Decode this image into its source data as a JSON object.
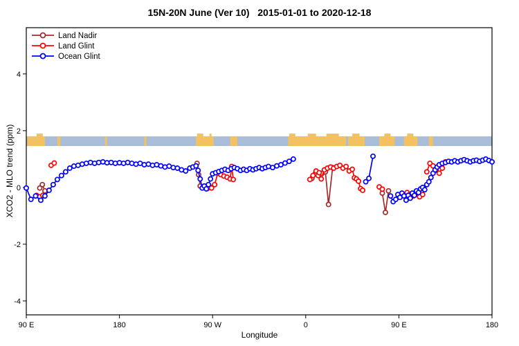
{
  "title": "15N-20N June (Ver 10)   2015-01-01 to 2020-12-18",
  "chart_data": {
    "type": "scatter",
    "title": "15N-20N June (Ver 10)   2015-01-01 to 2020-12-18",
    "xlabel": "Longitude",
    "ylabel": "XCO2 - MLO trend (ppm)",
    "x_domain": [
      90,
      540
    ],
    "ylim": [
      -4.49,
      5.63
    ],
    "grid": false,
    "x_ticks": [
      {
        "value": 90,
        "label": "90 E"
      },
      {
        "value": 180,
        "label": "180"
      },
      {
        "value": 270,
        "label": "90 W"
      },
      {
        "value": 360,
        "label": "0"
      },
      {
        "value": 450,
        "label": "90 E"
      },
      {
        "value": 540,
        "label": "180"
      }
    ],
    "y_ticks": [
      {
        "value": -4,
        "label": "-4"
      },
      {
        "value": -2,
        "label": "-2"
      },
      {
        "value": 0,
        "label": "0"
      },
      {
        "value": 2,
        "label": "2"
      },
      {
        "value": 4,
        "label": "4"
      }
    ],
    "legend": {
      "position": "top-left",
      "entries": [
        {
          "label": "Land Nadir",
          "color": "#A52A2A"
        },
        {
          "label": "Land Glint",
          "color": "#FF0000"
        },
        {
          "label": "Ocean Glint",
          "color": "#0000FF"
        }
      ]
    },
    "map_strip": {
      "y_range": [
        1.46,
        1.8
      ],
      "ocean_color": "#A9BDD8",
      "land_color": "#F4C162",
      "land_segments": [
        [
          91,
          108
        ],
        [
          120,
          123
        ],
        [
          166,
          168
        ],
        [
          204,
          206
        ],
        [
          254,
          271
        ],
        [
          287,
          294
        ],
        [
          343,
          399
        ],
        [
          401,
          417
        ],
        [
          431,
          446
        ],
        [
          455,
          468
        ],
        [
          479,
          483
        ]
      ],
      "land_flecks": [
        [
          100,
          106
        ],
        [
          255,
          261
        ],
        [
          267,
          269
        ],
        [
          344,
          350
        ],
        [
          362,
          370
        ],
        [
          380,
          392
        ],
        [
          405,
          412
        ],
        [
          436,
          442
        ],
        [
          458,
          464
        ]
      ]
    },
    "series": [
      {
        "name": "Land Nadir",
        "color": "#A52A2A",
        "segments": [
          [
            [
              103,
              -0.02
            ],
            [
              105.5,
              0.1
            ],
            [
              108,
              -0.12
            ]
          ],
          [
            [
              255,
              0.85
            ],
            [
              256.5,
              0.45
            ],
            [
              258,
              0.05
            ]
          ],
          [
            [
              366,
              0.32
            ],
            [
              369,
              0.48
            ],
            [
              372,
              0.42
            ],
            [
              376,
              0.5
            ],
            [
              379,
              0.55
            ],
            [
              382,
              -0.6
            ],
            [
              386,
              0.7
            ]
          ],
          [
            [
              434,
              -0.2
            ],
            [
              437,
              -0.88
            ],
            [
              440,
              -0.12
            ]
          ]
        ]
      },
      {
        "name": "Land Glint",
        "color": "#FF0000",
        "segments": [
          [
            [
              100,
              -0.28
            ],
            [
              103,
              -0.33
            ],
            [
              106,
              -0.28
            ]
          ],
          [
            [
              114,
              0.78
            ],
            [
              117,
              0.86
            ]
          ],
          [
            [
              263,
              0.02
            ],
            [
              265,
              -0.04
            ],
            [
              267,
              0.04
            ],
            [
              269,
              -0.02
            ],
            [
              272,
              0.1
            ],
            [
              275,
              0.5
            ],
            [
              278,
              0.45
            ],
            [
              281,
              0.4
            ],
            [
              284,
              0.36
            ],
            [
              287,
              0.3
            ],
            [
              288.5,
              0.74
            ],
            [
              290,
              0.28
            ]
          ],
          [
            [
              364,
              0.28
            ],
            [
              367,
              0.42
            ],
            [
              370,
              0.58
            ],
            [
              373,
              0.52
            ],
            [
              375,
              0.3
            ],
            [
              378,
              0.62
            ],
            [
              381,
              0.68
            ],
            [
              384,
              0.72
            ],
            [
              387,
              0.68
            ],
            [
              390,
              0.74
            ],
            [
              393,
              0.78
            ],
            [
              396,
              0.68
            ],
            [
              399,
              0.74
            ],
            [
              402,
              0.58
            ],
            [
              405,
              0.64
            ],
            [
              407,
              0.34
            ],
            [
              409,
              0.3
            ],
            [
              411,
              0.22
            ],
            [
              413,
              -0.04
            ],
            [
              415,
              -0.1
            ]
          ],
          [
            [
              431,
              0.02
            ],
            [
              434,
              -0.06
            ]
          ],
          [
            [
              458,
              -0.18
            ],
            [
              461,
              -0.24
            ],
            [
              464,
              -0.3
            ],
            [
              467,
              -0.2
            ],
            [
              470,
              -0.33
            ],
            [
              473,
              -0.25
            ]
          ],
          [
            [
              477,
              0.55
            ],
            [
              480,
              0.85
            ],
            [
              483,
              0.76
            ],
            [
              486,
              0.6
            ],
            [
              489,
              0.5
            ],
            [
              492,
              0.68
            ],
            [
              495,
              0.9
            ]
          ]
        ]
      },
      {
        "name": "Ocean Glint",
        "color": "#0000FF",
        "segments": [
          [
            [
              90,
              -0.02
            ],
            [
              94.5,
              -0.42
            ],
            [
              99,
              -0.3
            ],
            [
              104,
              -0.45
            ],
            [
              108,
              -0.3
            ],
            [
              112,
              -0.1
            ],
            [
              116,
              0.1
            ],
            [
              120,
              0.28
            ],
            [
              124,
              0.42
            ],
            [
              128,
              0.55
            ],
            [
              132,
              0.68
            ],
            [
              136,
              0.75
            ],
            [
              140,
              0.78
            ],
            [
              144,
              0.82
            ],
            [
              148,
              0.85
            ],
            [
              152,
              0.88
            ],
            [
              156,
              0.85
            ],
            [
              160,
              0.88
            ],
            [
              164,
              0.9
            ],
            [
              168,
              0.87
            ],
            [
              172,
              0.88
            ],
            [
              176,
              0.85
            ],
            [
              180,
              0.87
            ],
            [
              184,
              0.85
            ],
            [
              188,
              0.88
            ],
            [
              192,
              0.85
            ],
            [
              196,
              0.82
            ],
            [
              200,
              0.85
            ],
            [
              204,
              0.8
            ],
            [
              208,
              0.82
            ],
            [
              212,
              0.78
            ],
            [
              216,
              0.8
            ],
            [
              220,
              0.76
            ],
            [
              224,
              0.72
            ],
            [
              228,
              0.75
            ],
            [
              232,
              0.7
            ],
            [
              236,
              0.68
            ],
            [
              240,
              0.62
            ],
            [
              244,
              0.58
            ],
            [
              248,
              0.68
            ],
            [
              251,
              0.72
            ],
            [
              254,
              0.76
            ],
            [
              256,
              0.6
            ],
            [
              258,
              0.3
            ],
            [
              260,
              -0.02
            ],
            [
              262,
              0.05
            ],
            [
              264,
              -0.05
            ],
            [
              266,
              0.1
            ],
            [
              268,
              0.3
            ],
            [
              270,
              0.48
            ],
            [
              273,
              0.52
            ],
            [
              276,
              0.56
            ],
            [
              279,
              0.6
            ],
            [
              282,
              0.64
            ],
            [
              285,
              0.6
            ],
            [
              288,
              0.66
            ],
            [
              291,
              0.7
            ],
            [
              294,
              0.66
            ],
            [
              297,
              0.6
            ],
            [
              300,
              0.64
            ],
            [
              303,
              0.6
            ],
            [
              306,
              0.66
            ],
            [
              309,
              0.62
            ],
            [
              312,
              0.66
            ],
            [
              315,
              0.7
            ],
            [
              318,
              0.66
            ],
            [
              321,
              0.7
            ],
            [
              324,
              0.74
            ],
            [
              328,
              0.7
            ],
            [
              332,
              0.76
            ],
            [
              336,
              0.8
            ],
            [
              340,
              0.86
            ],
            [
              344,
              0.92
            ],
            [
              348,
              1.0
            ]
          ],
          [
            [
              418,
              0.2
            ],
            [
              421,
              0.32
            ],
            [
              425,
              1.1
            ]
          ],
          [
            [
              442,
              -0.3
            ],
            [
              444.5,
              -0.5
            ],
            [
              447,
              -0.42
            ],
            [
              449,
              -0.25
            ],
            [
              451,
              -0.35
            ],
            [
              453,
              -0.2
            ],
            [
              455,
              -0.3
            ],
            [
              457,
              -0.45
            ],
            [
              459,
              -0.28
            ],
            [
              461,
              -0.38
            ],
            [
              463,
              -0.2
            ],
            [
              465,
              -0.28
            ],
            [
              467,
              -0.12
            ],
            [
              469,
              -0.18
            ],
            [
              471,
              -0.05
            ],
            [
              473,
              0
            ],
            [
              475,
              -0.08
            ],
            [
              477,
              0.1
            ],
            [
              479,
              0.2
            ],
            [
              481,
              0.35
            ],
            [
              483,
              0.5
            ],
            [
              485,
              0.62
            ],
            [
              487,
              0.72
            ],
            [
              489,
              0.8
            ],
            [
              492,
              0.85
            ],
            [
              495,
              0.88
            ],
            [
              498,
              0.92
            ],
            [
              501,
              0.9
            ],
            [
              504,
              0.94
            ],
            [
              507,
              0.9
            ],
            [
              510,
              0.94
            ],
            [
              513,
              0.98
            ],
            [
              516,
              0.94
            ],
            [
              519,
              0.9
            ],
            [
              522,
              0.94
            ],
            [
              525,
              0.96
            ],
            [
              528,
              0.92
            ],
            [
              531,
              0.96
            ],
            [
              534,
              1
            ],
            [
              537,
              0.95
            ],
            [
              540,
              0.9
            ]
          ]
        ]
      }
    ]
  }
}
